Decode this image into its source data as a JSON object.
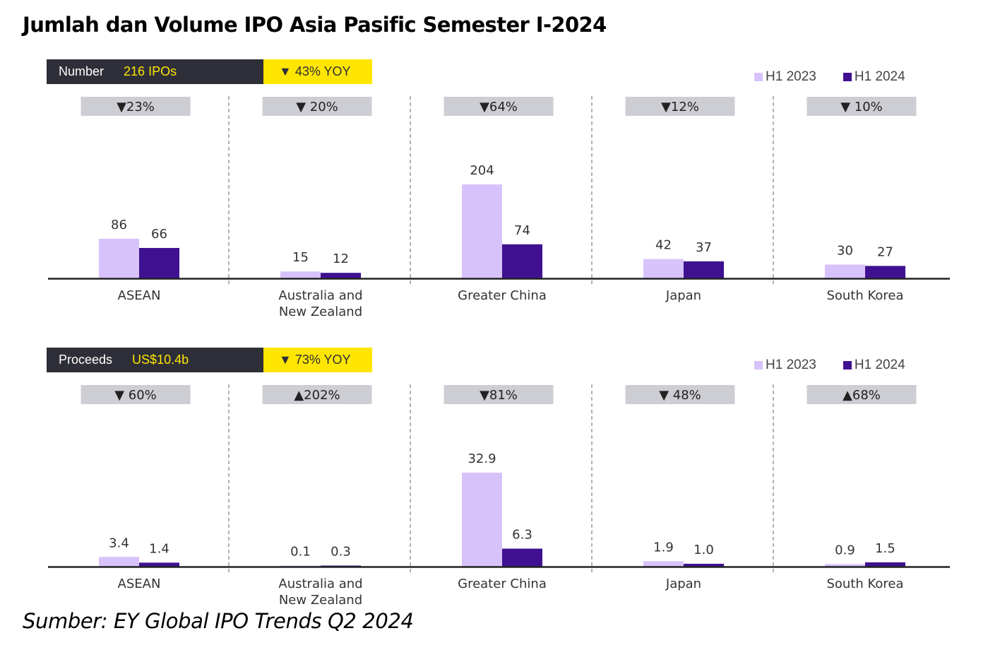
{
  "title": "Jumlah dan Volume IPO Asia Pasific Semester I-2024",
  "source": "Sumber: EY Global IPO Trends Q2 2024",
  "colors": {
    "h1_2023": "#d8c2fb",
    "h1_2024": "#3f1191",
    "header_dark": "#2e2e38",
    "header_yellow": "#ffe600",
    "change_badge": "#cdcdd4"
  },
  "chart_data": [
    {
      "type": "bar",
      "header": {
        "metric": "Number",
        "total": "216 IPOs",
        "yoy": "▼ 43% YOY"
      },
      "categories": [
        "ASEAN",
        "Australia and\nNew Zealand",
        "Greater China",
        "Japan",
        "South Korea"
      ],
      "series": [
        {
          "name": "H1 2023",
          "values": [
            86,
            15,
            204,
            42,
            30
          ],
          "labels": [
            "86",
            "15",
            "204",
            "42",
            "30"
          ]
        },
        {
          "name": "H1 2024",
          "values": [
            66,
            12,
            74,
            37,
            27
          ],
          "labels": [
            "66",
            "12",
            "74",
            "37",
            "27"
          ]
        }
      ],
      "changes": [
        "▼23%",
        "▼ 20%",
        "▼64%",
        "▼12%",
        "▼ 10%"
      ],
      "ylim": [
        0,
        204
      ],
      "legend": "top-right"
    },
    {
      "type": "bar",
      "header": {
        "metric": "Proceeds",
        "total": "US$10.4b",
        "yoy": "▼  73% YOY"
      },
      "categories": [
        "ASEAN",
        "Australia and\nNew Zealand",
        "Greater China",
        "Japan",
        "South Korea"
      ],
      "series": [
        {
          "name": "H1 2023",
          "values": [
            3.4,
            0.1,
            32.9,
            1.9,
            0.9
          ],
          "labels": [
            "3.4",
            "0.1",
            "32.9",
            "1.9",
            "0.9"
          ]
        },
        {
          "name": "H1 2024",
          "values": [
            1.4,
            0.3,
            6.3,
            1.0,
            1.5
          ],
          "labels": [
            "1.4",
            "0.3",
            "6.3",
            "1.0",
            "1.5"
          ]
        }
      ],
      "changes": [
        "▼ 60%",
        "▲202%",
        "▼81%",
        "▼ 48%",
        "▲68%"
      ],
      "ylim": [
        0,
        32.9
      ],
      "legend": "top-right"
    }
  ]
}
